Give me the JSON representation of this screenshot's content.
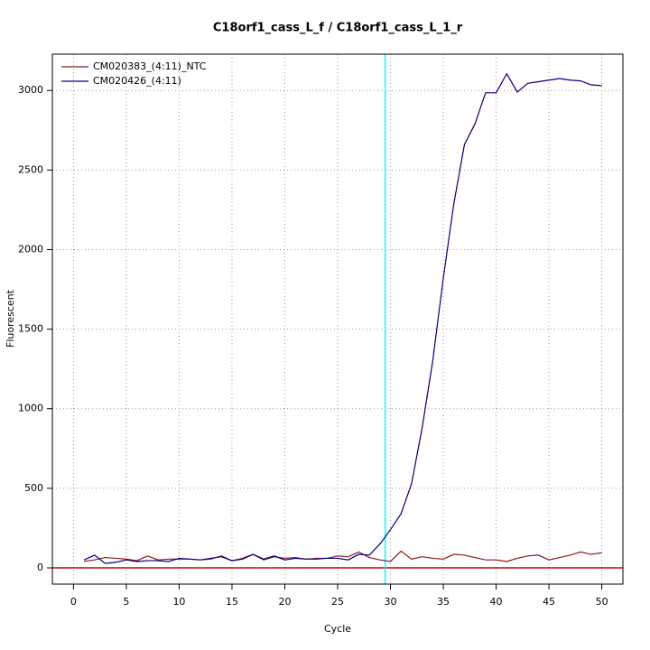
{
  "chart_data": {
    "type": "line",
    "title": "C18orf1_cass_L_f / C18orf1_cass_L_1_r",
    "x_label": "Cycle",
    "y_label": "Fluorescent",
    "x": [
      1,
      2,
      3,
      4,
      5,
      6,
      7,
      8,
      9,
      10,
      11,
      12,
      13,
      14,
      15,
      16,
      17,
      18,
      19,
      20,
      21,
      22,
      23,
      24,
      25,
      26,
      27,
      28,
      29,
      30,
      31,
      32,
      33,
      34,
      35,
      36,
      37,
      38,
      39,
      40,
      41,
      42,
      43,
      44,
      45,
      46,
      47,
      48,
      49,
      50
    ],
    "series": [
      {
        "name": "CM020383_(4:11)_NTC",
        "color": "#8b1a1a",
        "values": [
          40,
          50,
          65,
          60,
          55,
          45,
          75,
          50,
          55,
          55,
          55,
          50,
          55,
          75,
          45,
          60,
          85,
          50,
          70,
          60,
          65,
          55,
          60,
          60,
          75,
          70,
          100,
          65,
          50,
          40,
          105,
          55,
          70,
          60,
          55,
          85,
          80,
          65,
          50,
          50,
          40,
          60,
          75,
          80,
          50,
          65,
          80,
          100,
          85,
          95
        ]
      },
      {
        "name": "CM020426_(4:11)",
        "color": "#00007f",
        "values": [
          50,
          80,
          28,
          35,
          50,
          40,
          45,
          45,
          40,
          60,
          55,
          50,
          60,
          70,
          45,
          55,
          85,
          55,
          75,
          50,
          60,
          55,
          55,
          60,
          60,
          50,
          85,
          80,
          150,
          240,
          340,
          530,
          880,
          1300,
          1820,
          2290,
          2660,
          2790,
          2985,
          2985,
          3105,
          2990,
          3045,
          3055,
          3065,
          3075,
          3065,
          3060,
          3035,
          3030
        ]
      }
    ],
    "xlim": [
      -2,
      52
    ],
    "ylim": [
      -102,
      3228
    ],
    "xticks": [
      0,
      5,
      10,
      15,
      20,
      25,
      30,
      35,
      40,
      45,
      50
    ],
    "yticks": [
      0,
      500,
      1000,
      1500,
      2000,
      2500,
      3000
    ],
    "grid": true,
    "vline": {
      "x": 29.5,
      "color": "#00ffff"
    },
    "hline": {
      "y": 0,
      "color": "#cc0000"
    },
    "legend": "top-left"
  }
}
